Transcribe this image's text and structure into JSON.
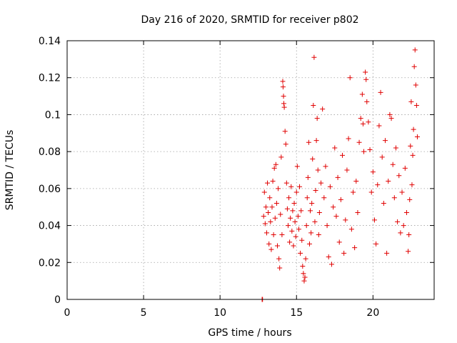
{
  "chart_data": {
    "type": "scatter",
    "title": "Day 216 of 2020, SRMTID for receiver p802",
    "xlabel": "GPS time / hours",
    "ylabel": "SRMTID / TECUs",
    "xlim": [
      0,
      24
    ],
    "ylim": [
      0,
      0.14
    ],
    "x_ticks": [
      0,
      5,
      10,
      15,
      20
    ],
    "x_tick_labels": [
      "0",
      "5",
      "10",
      "15",
      "20"
    ],
    "y_ticks": [
      0,
      0.02,
      0.04,
      0.06,
      0.08,
      0.1,
      0.12,
      0.14
    ],
    "y_tick_labels": [
      "0",
      "0.02",
      "0.04",
      "0.06",
      "0.08",
      "0.1",
      "0.12",
      "0.14"
    ],
    "grid": true,
    "marker": "plus",
    "color": "#e00000",
    "series": [
      {
        "name": "SRMTID",
        "points": [
          [
            12.75,
            0.0
          ],
          [
            12.78,
            0.0
          ],
          [
            12.85,
            0.045
          ],
          [
            12.9,
            0.058
          ],
          [
            12.95,
            0.041
          ],
          [
            13.0,
            0.05
          ],
          [
            13.05,
            0.036
          ],
          [
            13.1,
            0.063
          ],
          [
            13.15,
            0.047
          ],
          [
            13.2,
            0.03
          ],
          [
            13.25,
            0.055
          ],
          [
            13.3,
            0.042
          ],
          [
            13.35,
            0.027
          ],
          [
            13.4,
            0.05
          ],
          [
            13.45,
            0.064
          ],
          [
            13.5,
            0.035
          ],
          [
            13.55,
            0.071
          ],
          [
            13.6,
            0.044
          ],
          [
            13.65,
            0.073
          ],
          [
            13.7,
            0.052
          ],
          [
            13.75,
            0.029
          ],
          [
            13.8,
            0.06
          ],
          [
            13.85,
            0.022
          ],
          [
            13.9,
            0.017
          ],
          [
            13.95,
            0.046
          ],
          [
            14.0,
            0.077
          ],
          [
            14.05,
            0.035
          ],
          [
            14.1,
            0.118
          ],
          [
            14.12,
            0.115
          ],
          [
            14.15,
            0.11
          ],
          [
            14.17,
            0.106
          ],
          [
            14.2,
            0.104
          ],
          [
            14.25,
            0.091
          ],
          [
            14.3,
            0.084
          ],
          [
            14.35,
            0.063
          ],
          [
            14.4,
            0.049
          ],
          [
            14.45,
            0.04
          ],
          [
            14.5,
            0.055
          ],
          [
            14.55,
            0.031
          ],
          [
            14.6,
            0.044
          ],
          [
            14.65,
            0.061
          ],
          [
            14.7,
            0.037
          ],
          [
            14.75,
            0.048
          ],
          [
            14.8,
            0.029
          ],
          [
            14.85,
            0.052
          ],
          [
            14.9,
            0.042
          ],
          [
            14.95,
            0.034
          ],
          [
            15.0,
            0.058
          ],
          [
            15.05,
            0.072
          ],
          [
            15.1,
            0.045
          ],
          [
            15.15,
            0.038
          ],
          [
            15.2,
            0.061
          ],
          [
            15.25,
            0.025
          ],
          [
            15.3,
            0.048
          ],
          [
            15.35,
            0.032
          ],
          [
            15.4,
            0.018
          ],
          [
            15.45,
            0.014
          ],
          [
            15.5,
            0.01
          ],
          [
            15.55,
            0.012
          ],
          [
            15.6,
            0.022
          ],
          [
            15.65,
            0.04
          ],
          [
            15.7,
            0.055
          ],
          [
            15.75,
            0.066
          ],
          [
            15.8,
            0.085
          ],
          [
            15.85,
            0.03
          ],
          [
            15.9,
            0.048
          ],
          [
            15.95,
            0.036
          ],
          [
            16.0,
            0.052
          ],
          [
            16.05,
            0.076
          ],
          [
            16.1,
            0.105
          ],
          [
            16.15,
            0.131
          ],
          [
            16.2,
            0.042
          ],
          [
            16.25,
            0.059
          ],
          [
            16.3,
            0.086
          ],
          [
            16.35,
            0.098
          ],
          [
            16.4,
            0.07
          ],
          [
            16.45,
            0.035
          ],
          [
            16.5,
            0.047
          ],
          [
            16.6,
            0.063
          ],
          [
            16.7,
            0.103
          ],
          [
            16.8,
            0.055
          ],
          [
            16.9,
            0.072
          ],
          [
            17.0,
            0.04
          ],
          [
            17.1,
            0.023
          ],
          [
            17.2,
            0.061
          ],
          [
            17.3,
            0.019
          ],
          [
            17.4,
            0.05
          ],
          [
            17.5,
            0.082
          ],
          [
            17.6,
            0.045
          ],
          [
            17.7,
            0.066
          ],
          [
            17.8,
            0.031
          ],
          [
            17.9,
            0.054
          ],
          [
            18.0,
            0.078
          ],
          [
            18.1,
            0.025
          ],
          [
            18.2,
            0.043
          ],
          [
            18.3,
            0.07
          ],
          [
            18.4,
            0.087
          ],
          [
            18.5,
            0.12
          ],
          [
            18.6,
            0.038
          ],
          [
            18.7,
            0.058
          ],
          [
            18.8,
            0.028
          ],
          [
            18.9,
            0.064
          ],
          [
            19.0,
            0.047
          ],
          [
            19.1,
            0.085
          ],
          [
            19.2,
            0.098
          ],
          [
            19.3,
            0.111
          ],
          [
            19.35,
            0.095
          ],
          [
            19.4,
            0.08
          ],
          [
            19.5,
            0.123
          ],
          [
            19.55,
            0.119
          ],
          [
            19.6,
            0.107
          ],
          [
            19.7,
            0.096
          ],
          [
            19.8,
            0.081
          ],
          [
            19.9,
            0.058
          ],
          [
            20.0,
            0.069
          ],
          [
            20.1,
            0.043
          ],
          [
            20.2,
            0.03
          ],
          [
            20.3,
            0.062
          ],
          [
            20.4,
            0.094
          ],
          [
            20.5,
            0.112
          ],
          [
            20.6,
            0.077
          ],
          [
            20.7,
            0.052
          ],
          [
            20.8,
            0.086
          ],
          [
            20.9,
            0.025
          ],
          [
            21.0,
            0.064
          ],
          [
            21.1,
            0.1
          ],
          [
            21.2,
            0.098
          ],
          [
            21.3,
            0.073
          ],
          [
            21.4,
            0.055
          ],
          [
            21.5,
            0.082
          ],
          [
            21.6,
            0.042
          ],
          [
            21.7,
            0.067
          ],
          [
            21.8,
            0.036
          ],
          [
            21.9,
            0.058
          ],
          [
            22.0,
            0.04
          ],
          [
            22.1,
            0.071
          ],
          [
            22.2,
            0.047
          ],
          [
            22.3,
            0.026
          ],
          [
            22.35,
            0.035
          ],
          [
            22.4,
            0.054
          ],
          [
            22.45,
            0.083
          ],
          [
            22.5,
            0.107
          ],
          [
            22.55,
            0.062
          ],
          [
            22.6,
            0.078
          ],
          [
            22.65,
            0.092
          ],
          [
            22.7,
            0.126
          ],
          [
            22.75,
            0.135
          ],
          [
            22.8,
            0.116
          ],
          [
            22.85,
            0.105
          ],
          [
            22.9,
            0.088
          ]
        ]
      }
    ]
  }
}
